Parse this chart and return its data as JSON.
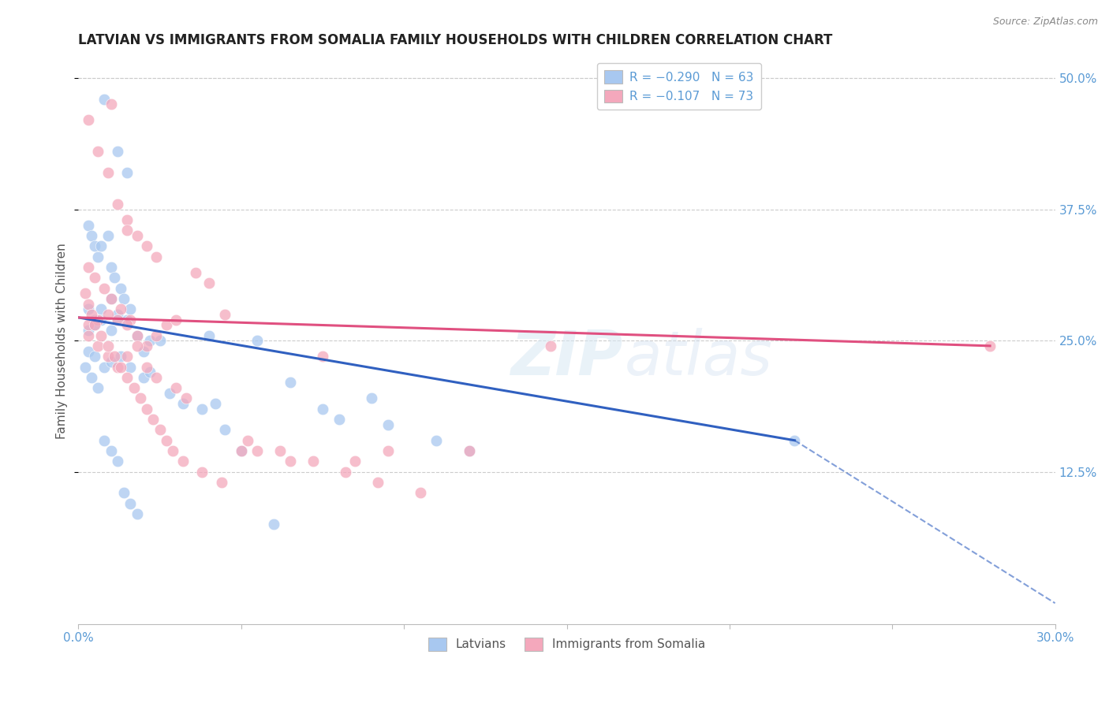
{
  "title": "LATVIAN VS IMMIGRANTS FROM SOMALIA FAMILY HOUSEHOLDS WITH CHILDREN CORRELATION CHART",
  "source": "Source: ZipAtlas.com",
  "ylabel": "Family Households with Children",
  "xlabel_latvians": "Latvians",
  "xlabel_somalia": "Immigrants from Somalia",
  "legend_latvians": "R = −0.290   N = 63",
  "legend_somalia": "R = −0.107   N = 73",
  "xlim": [
    0.0,
    0.3
  ],
  "ylim": [
    -0.02,
    0.52
  ],
  "yticks": [
    0.125,
    0.25,
    0.375,
    0.5
  ],
  "ytick_labels": [
    "12.5%",
    "25.0%",
    "37.5%",
    "50.0%"
  ],
  "xticks": [
    0.0,
    0.05,
    0.1,
    0.15,
    0.2,
    0.25,
    0.3
  ],
  "xtick_labels": [
    "0.0%",
    "",
    "",
    "",
    "",
    "",
    "30.0%"
  ],
  "color_latvian": "#A8C8F0",
  "color_somalia": "#F4A8BC",
  "color_line_latvian": "#3060C0",
  "color_line_somalia": "#E05080",
  "latvian_x": [
    0.008,
    0.012,
    0.015,
    0.003,
    0.004,
    0.005,
    0.006,
    0.007,
    0.009,
    0.01,
    0.011,
    0.013,
    0.014,
    0.003,
    0.005,
    0.007,
    0.01,
    0.012,
    0.016,
    0.003,
    0.005,
    0.007,
    0.01,
    0.012,
    0.015,
    0.018,
    0.02,
    0.022,
    0.025,
    0.003,
    0.005,
    0.008,
    0.01,
    0.013,
    0.016,
    0.02,
    0.022,
    0.028,
    0.032,
    0.038,
    0.042,
    0.055,
    0.065,
    0.075,
    0.08,
    0.09,
    0.095,
    0.11,
    0.12,
    0.002,
    0.004,
    0.006,
    0.008,
    0.01,
    0.012,
    0.014,
    0.016,
    0.018,
    0.04,
    0.045,
    0.05,
    0.06,
    0.22
  ],
  "latvian_y": [
    0.48,
    0.43,
    0.41,
    0.36,
    0.35,
    0.34,
    0.33,
    0.34,
    0.35,
    0.32,
    0.31,
    0.3,
    0.29,
    0.28,
    0.27,
    0.28,
    0.29,
    0.27,
    0.28,
    0.26,
    0.265,
    0.27,
    0.26,
    0.275,
    0.27,
    0.255,
    0.24,
    0.25,
    0.25,
    0.24,
    0.235,
    0.225,
    0.23,
    0.235,
    0.225,
    0.215,
    0.22,
    0.2,
    0.19,
    0.185,
    0.19,
    0.25,
    0.21,
    0.185,
    0.175,
    0.195,
    0.17,
    0.155,
    0.145,
    0.225,
    0.215,
    0.205,
    0.155,
    0.145,
    0.135,
    0.105,
    0.095,
    0.085,
    0.255,
    0.165,
    0.145,
    0.075,
    0.155
  ],
  "somalia_x": [
    0.003,
    0.006,
    0.009,
    0.012,
    0.015,
    0.018,
    0.021,
    0.024,
    0.003,
    0.005,
    0.008,
    0.01,
    0.013,
    0.016,
    0.003,
    0.006,
    0.009,
    0.012,
    0.015,
    0.018,
    0.021,
    0.024,
    0.027,
    0.03,
    0.003,
    0.006,
    0.009,
    0.012,
    0.015,
    0.018,
    0.021,
    0.024,
    0.03,
    0.033,
    0.036,
    0.04,
    0.045,
    0.05,
    0.055,
    0.065,
    0.075,
    0.085,
    0.095,
    0.002,
    0.003,
    0.004,
    0.005,
    0.007,
    0.009,
    0.011,
    0.013,
    0.015,
    0.017,
    0.019,
    0.021,
    0.023,
    0.025,
    0.027,
    0.029,
    0.032,
    0.038,
    0.044,
    0.052,
    0.062,
    0.072,
    0.082,
    0.092,
    0.105,
    0.12,
    0.145,
    0.01,
    0.015,
    0.28
  ],
  "somalia_y": [
    0.46,
    0.43,
    0.41,
    0.38,
    0.365,
    0.35,
    0.34,
    0.33,
    0.32,
    0.31,
    0.3,
    0.29,
    0.28,
    0.27,
    0.265,
    0.27,
    0.275,
    0.27,
    0.265,
    0.255,
    0.245,
    0.255,
    0.265,
    0.27,
    0.255,
    0.245,
    0.235,
    0.225,
    0.235,
    0.245,
    0.225,
    0.215,
    0.205,
    0.195,
    0.315,
    0.305,
    0.275,
    0.145,
    0.145,
    0.135,
    0.235,
    0.135,
    0.145,
    0.295,
    0.285,
    0.275,
    0.265,
    0.255,
    0.245,
    0.235,
    0.225,
    0.215,
    0.205,
    0.195,
    0.185,
    0.175,
    0.165,
    0.155,
    0.145,
    0.135,
    0.125,
    0.115,
    0.155,
    0.145,
    0.135,
    0.125,
    0.115,
    0.105,
    0.145,
    0.245,
    0.475,
    0.355,
    0.245
  ],
  "line_lat_x_start": 0.0,
  "line_lat_x_solid_end": 0.22,
  "line_lat_x_dash_end": 0.3,
  "line_lat_y_start": 0.272,
  "line_lat_y_solid_end": 0.155,
  "line_lat_y_dash_end": 0.0,
  "line_som_x_start": 0.0,
  "line_som_x_end": 0.28,
  "line_som_y_start": 0.272,
  "line_som_y_end": 0.245
}
